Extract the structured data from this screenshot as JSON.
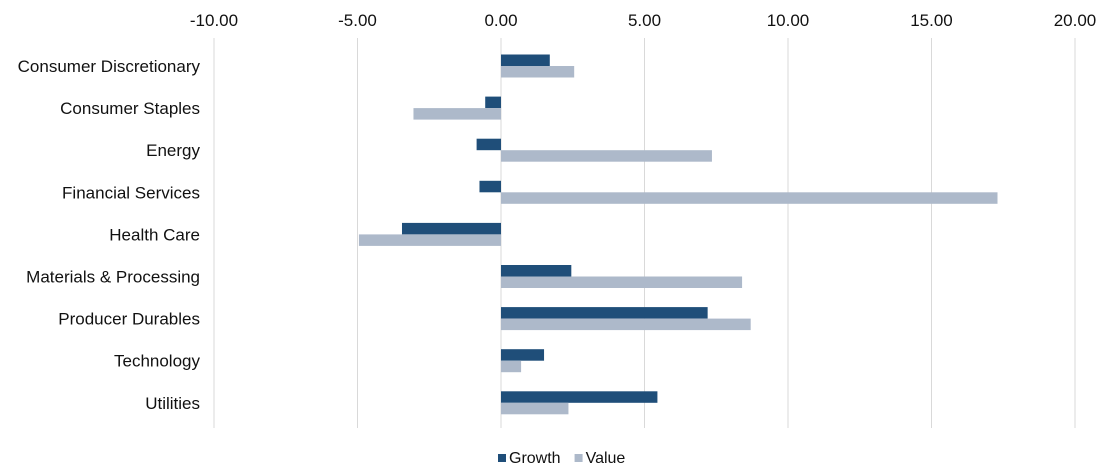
{
  "chart_data": {
    "type": "bar",
    "orientation": "horizontal",
    "categories": [
      "Consumer Discretionary",
      "Consumer Staples",
      "Energy",
      "Financial Services",
      "Health Care",
      "Materials & Processing",
      "Producer Durables",
      "Technology",
      "Utilities"
    ],
    "series": [
      {
        "name": "Growth",
        "color": "#1f4e79",
        "values": [
          1.7,
          -0.55,
          -0.85,
          -0.75,
          -3.45,
          2.45,
          7.2,
          1.5,
          5.45
        ]
      },
      {
        "name": "Value",
        "color": "#adb9ca",
        "values": [
          2.55,
          -3.05,
          7.35,
          17.3,
          -4.95,
          8.4,
          8.7,
          0.7,
          2.35
        ]
      }
    ],
    "xlim": [
      -10,
      20
    ],
    "xticks": [
      "-10.00",
      "-5.00",
      "0.00",
      "5.00",
      "10.00",
      "15.00",
      "20.00"
    ],
    "tick_values": [
      -10,
      -5,
      0,
      5,
      10,
      15,
      20
    ],
    "axis_position": "top",
    "grid": "vertical",
    "legend_position": "bottom"
  }
}
